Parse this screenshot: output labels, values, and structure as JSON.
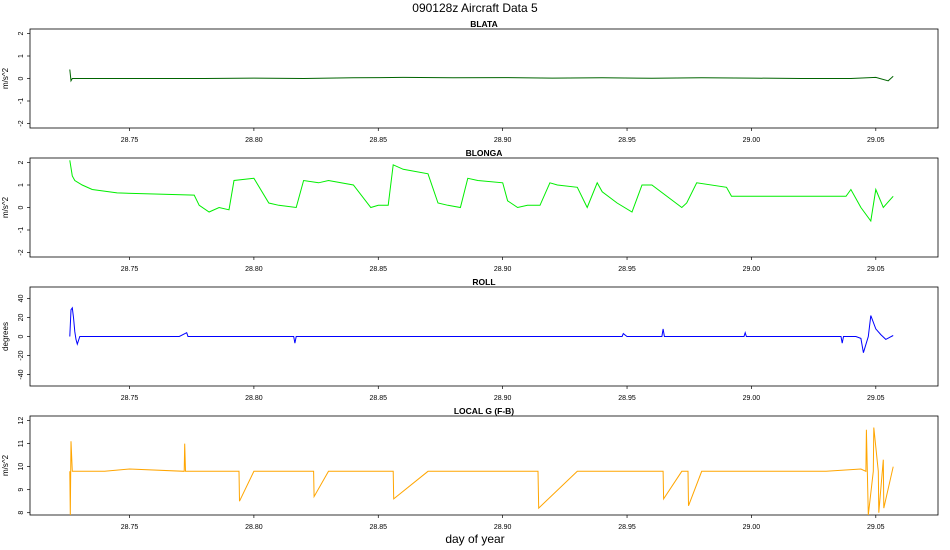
{
  "page": {
    "title": "090128z   Aircraft Data 5",
    "xlabel": "day of year"
  },
  "chart_data": [
    {
      "type": "line",
      "title": "BLATA",
      "ylabel": "m/s^2",
      "xlim": [
        28.71,
        29.075
      ],
      "ylim": [
        -2.2,
        2.2
      ],
      "yticks": [
        -2,
        -1,
        0,
        1,
        2
      ],
      "xticks": [
        28.75,
        28.8,
        28.85,
        28.9,
        28.95,
        29.0,
        29.05
      ],
      "xtick_labels": [
        "28.75",
        "28.80",
        "28.85",
        "28.90",
        "28.95",
        "29.00",
        "29.05"
      ],
      "color": "#006400",
      "x": [
        28.726,
        28.7265,
        28.727,
        28.74,
        28.76,
        28.78,
        28.8,
        28.82,
        28.84,
        28.86,
        28.88,
        28.9,
        28.92,
        28.94,
        28.96,
        28.98,
        29.0,
        29.02,
        29.04,
        29.05,
        29.055,
        29.057
      ],
      "y": [
        0.4,
        -0.1,
        0.0,
        0.0,
        0.0,
        0.0,
        0.02,
        0.0,
        0.03,
        0.05,
        0.03,
        0.04,
        0.02,
        0.03,
        0.01,
        0.03,
        0.02,
        0.0,
        0.0,
        0.05,
        -0.1,
        0.1
      ]
    },
    {
      "type": "line",
      "title": "BLONGA",
      "ylabel": "m/s^2",
      "xlim": [
        28.71,
        29.075
      ],
      "ylim": [
        -2.2,
        2.2
      ],
      "yticks": [
        -2,
        -1,
        0,
        1,
        2
      ],
      "xticks": [
        28.75,
        28.8,
        28.85,
        28.9,
        28.95,
        29.0,
        29.05
      ],
      "xtick_labels": [
        "28.75",
        "28.80",
        "28.85",
        "28.90",
        "28.95",
        "29.00",
        "29.05"
      ],
      "color": "#00ee00",
      "x": [
        28.726,
        28.727,
        28.728,
        28.731,
        28.735,
        28.745,
        28.76,
        28.776,
        28.778,
        28.782,
        28.786,
        28.79,
        28.792,
        28.8,
        28.806,
        28.81,
        28.817,
        28.82,
        28.826,
        28.83,
        28.84,
        28.847,
        28.85,
        28.854,
        28.856,
        28.86,
        28.87,
        28.874,
        28.878,
        28.883,
        28.886,
        28.89,
        28.9,
        28.902,
        28.906,
        28.91,
        28.915,
        28.919,
        28.922,
        28.93,
        28.934,
        28.938,
        28.94,
        28.946,
        28.952,
        28.956,
        28.96,
        28.972,
        28.974,
        28.978,
        28.99,
        28.992,
        29.0,
        29.02,
        29.03,
        29.038,
        29.04,
        29.044,
        29.048,
        29.05,
        29.053,
        29.057
      ],
      "y": [
        2.1,
        1.4,
        1.2,
        1.0,
        0.8,
        0.65,
        0.6,
        0.55,
        0.1,
        -0.2,
        0.0,
        -0.1,
        1.2,
        1.3,
        0.2,
        0.1,
        0.0,
        1.2,
        1.1,
        1.2,
        1.0,
        0.0,
        0.1,
        0.1,
        1.9,
        1.7,
        1.5,
        0.2,
        0.1,
        0.0,
        1.3,
        1.2,
        1.1,
        0.3,
        0.0,
        0.1,
        0.1,
        1.1,
        1.0,
        0.9,
        0.0,
        1.1,
        0.7,
        0.2,
        -0.2,
        1.0,
        1.0,
        0.0,
        0.2,
        1.1,
        0.9,
        0.5,
        0.5,
        0.5,
        0.5,
        0.5,
        0.8,
        0.0,
        -0.6,
        0.8,
        0.0,
        0.5
      ]
    },
    {
      "type": "line",
      "title": "ROLL",
      "ylabel": "degrees",
      "xlim": [
        28.71,
        29.075
      ],
      "ylim": [
        -52,
        52
      ],
      "yticks": [
        -40,
        -20,
        0,
        20,
        40
      ],
      "xticks": [
        28.75,
        28.8,
        28.85,
        28.9,
        28.95,
        29.0,
        29.05
      ],
      "xtick_labels": [
        "28.75",
        "28.80",
        "28.85",
        "28.90",
        "28.95",
        "29.00",
        "29.05"
      ],
      "color": "#0000ff",
      "x": [
        28.726,
        28.7265,
        28.727,
        28.7275,
        28.728,
        28.7285,
        28.729,
        28.73,
        28.77,
        28.773,
        28.7735,
        28.775,
        28.816,
        28.8165,
        28.817,
        28.87,
        28.948,
        28.9485,
        28.95,
        28.964,
        28.9645,
        28.965,
        28.997,
        28.9975,
        28.998,
        29.036,
        29.0365,
        29.037,
        29.042,
        29.044,
        29.045,
        29.047,
        29.048,
        29.05,
        29.052,
        29.054,
        29.057
      ],
      "y": [
        0,
        28,
        30,
        20,
        5,
        -3,
        -8,
        0,
        0,
        4,
        0,
        0,
        0,
        -7,
        0,
        0,
        0,
        3,
        0,
        0,
        8,
        0,
        0,
        4,
        0,
        0,
        -7,
        0,
        0,
        -2,
        -17,
        0,
        22,
        8,
        2,
        -3,
        1
      ]
    },
    {
      "type": "line",
      "title": "LOCAL G (F-B)",
      "ylabel": "m/s^2",
      "xlim": [
        28.71,
        29.075
      ],
      "ylim": [
        7.9,
        12.2
      ],
      "yticks": [
        8,
        9,
        10,
        11,
        12
      ],
      "xticks": [
        28.75,
        28.8,
        28.85,
        28.9,
        28.95,
        29.0,
        29.05
      ],
      "xtick_labels": [
        "28.75",
        "28.80",
        "28.85",
        "28.90",
        "28.95",
        "29.00",
        "29.05"
      ],
      "color": "#ffa500",
      "x": [
        28.726,
        28.7262,
        28.7265,
        28.727,
        28.728,
        28.74,
        28.75,
        28.772,
        28.7722,
        28.7725,
        28.775,
        28.79,
        28.794,
        28.7942,
        28.8,
        28.81,
        28.824,
        28.8242,
        28.83,
        28.85,
        28.856,
        28.8562,
        28.87,
        28.89,
        28.9,
        28.9142,
        28.9145,
        28.93,
        28.95,
        28.9645,
        28.9647,
        28.972,
        28.9745,
        28.9747,
        28.98,
        29.0,
        29.03,
        29.044,
        29.046,
        29.0462,
        29.047,
        29.049,
        29.0492,
        29.051,
        29.0512,
        29.053,
        29.0532,
        29.057
      ],
      "y": [
        9.8,
        7.9,
        11.1,
        9.8,
        9.8,
        9.8,
        9.9,
        9.8,
        11.0,
        9.8,
        9.8,
        9.8,
        9.8,
        8.5,
        9.8,
        9.8,
        9.8,
        8.7,
        9.8,
        9.8,
        9.8,
        8.6,
        9.8,
        9.8,
        9.8,
        9.8,
        8.2,
        9.8,
        9.8,
        9.8,
        8.6,
        9.8,
        9.8,
        8.3,
        9.8,
        9.8,
        9.8,
        9.9,
        9.8,
        11.6,
        7.9,
        9.8,
        11.7,
        9.8,
        8.0,
        10.3,
        8.2,
        10.0
      ]
    }
  ]
}
